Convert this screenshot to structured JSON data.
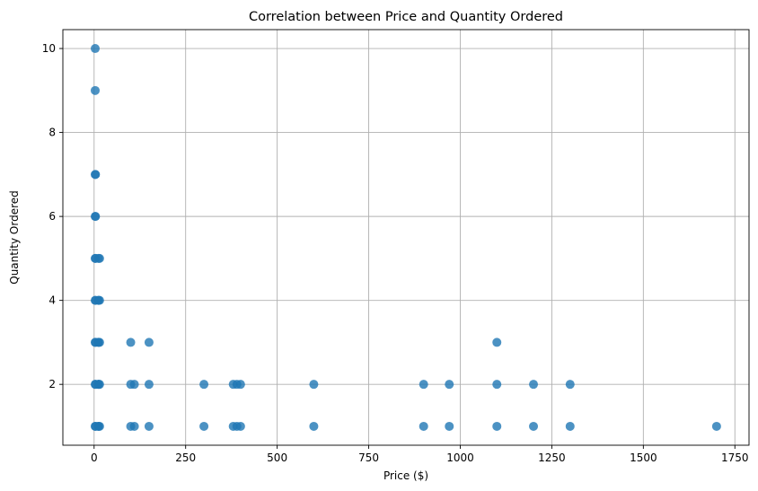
{
  "chart_data": {
    "type": "scatter",
    "title": "Correlation between Price and Quantity Ordered",
    "xlabel": "Price ($)",
    "ylabel": "Quantity Ordered",
    "xlim": [
      -85.3,
      1788.6
    ],
    "ylim": [
      0.55,
      10.45
    ],
    "xticks": [
      0,
      250,
      500,
      750,
      1000,
      1250,
      1500,
      1750
    ],
    "yticks": [
      2,
      4,
      6,
      8,
      10
    ],
    "grid": true,
    "color": "#1f77b4",
    "points": [
      [
        2.99,
        10
      ],
      [
        2.99,
        9
      ],
      [
        2.99,
        7
      ],
      [
        3.84,
        7
      ],
      [
        2.99,
        6
      ],
      [
        3.84,
        6
      ],
      [
        2.99,
        5
      ],
      [
        3.84,
        5
      ],
      [
        11.95,
        5
      ],
      [
        14.95,
        5
      ],
      [
        2.99,
        4
      ],
      [
        3.84,
        4
      ],
      [
        11.95,
        4
      ],
      [
        11.99,
        4
      ],
      [
        14.95,
        4
      ],
      [
        2.99,
        3
      ],
      [
        3.84,
        3
      ],
      [
        11.95,
        3
      ],
      [
        11.99,
        3
      ],
      [
        14.95,
        3
      ],
      [
        99.99,
        3
      ],
      [
        149.99,
        3
      ],
      [
        1099.99,
        3
      ],
      [
        2.99,
        2
      ],
      [
        3.84,
        2
      ],
      [
        11.95,
        2
      ],
      [
        11.99,
        2
      ],
      [
        14.95,
        2
      ],
      [
        99.99,
        2
      ],
      [
        109.99,
        2
      ],
      [
        149.99,
        2
      ],
      [
        300,
        2
      ],
      [
        379.99,
        2
      ],
      [
        389.99,
        2
      ],
      [
        400,
        2
      ],
      [
        600,
        2
      ],
      [
        900,
        2
      ],
      [
        970,
        2
      ],
      [
        1099.99,
        2
      ],
      [
        1199.99,
        2
      ],
      [
        1299.99,
        2
      ],
      [
        2.99,
        1
      ],
      [
        3.84,
        1
      ],
      [
        11.95,
        1
      ],
      [
        11.99,
        1
      ],
      [
        14.95,
        1
      ],
      [
        99.99,
        1
      ],
      [
        109.99,
        1
      ],
      [
        149.99,
        1
      ],
      [
        300,
        1
      ],
      [
        379.99,
        1
      ],
      [
        389.99,
        1
      ],
      [
        400,
        1
      ],
      [
        600,
        1
      ],
      [
        900,
        1
      ],
      [
        970,
        1
      ],
      [
        1099.99,
        1
      ],
      [
        1199.99,
        1
      ],
      [
        1299.99,
        1
      ],
      [
        1700,
        1
      ]
    ]
  }
}
